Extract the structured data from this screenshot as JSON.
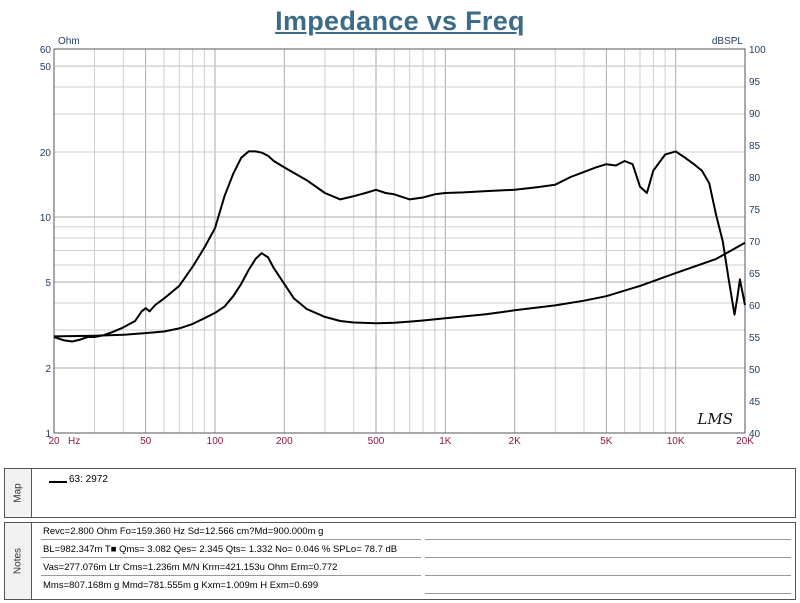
{
  "chart_data": {
    "type": "line",
    "title": "Impedance vs Freq",
    "x_scale": "log",
    "xlim": [
      20,
      20000
    ],
    "x_ticks": [
      {
        "value": 20,
        "label": "20"
      },
      {
        "value": 50,
        "label": "50"
      },
      {
        "value": 100,
        "label": "100"
      },
      {
        "value": 200,
        "label": "200"
      },
      {
        "value": 500,
        "label": "500"
      },
      {
        "value": 1000,
        "label": "1K"
      },
      {
        "value": 2000,
        "label": "2K"
      },
      {
        "value": 5000,
        "label": "5K"
      },
      {
        "value": 10000,
        "label": "10K"
      },
      {
        "value": 20000,
        "label": "20K"
      }
    ],
    "xunit": "Hz",
    "left_axis": {
      "unit": "Ohm",
      "scale": "log",
      "lim": [
        1,
        60
      ],
      "ticks": [
        {
          "value": 1,
          "label": "1"
        },
        {
          "value": 2,
          "label": "2"
        },
        {
          "value": 5,
          "label": "5"
        },
        {
          "value": 10,
          "label": "10"
        },
        {
          "value": 20,
          "label": "20"
        },
        {
          "value": 50,
          "label": "50"
        },
        {
          "value": 60,
          "label": "60"
        }
      ]
    },
    "right_axis": {
      "unit": "dBSPL",
      "scale": "linear",
      "lim": [
        40,
        100
      ],
      "ticks": [
        "40",
        "45",
        "50",
        "55",
        "60",
        "65",
        "70",
        "75",
        "80",
        "85",
        "90",
        "95",
        "100"
      ]
    },
    "grid": true,
    "watermark": "LMS",
    "series": [
      {
        "axis": "right",
        "unit": "dBSPL",
        "color": "#000000",
        "points": [
          [
            20,
            55
          ],
          [
            22,
            54.5
          ],
          [
            24,
            54.3
          ],
          [
            26,
            54.6
          ],
          [
            28,
            55
          ],
          [
            30,
            55
          ],
          [
            33,
            55.3
          ],
          [
            36,
            55.8
          ],
          [
            40,
            56.5
          ],
          [
            45,
            57.5
          ],
          [
            48,
            59
          ],
          [
            50,
            59.5
          ],
          [
            52,
            59
          ],
          [
            55,
            60
          ],
          [
            60,
            61
          ],
          [
            70,
            63
          ],
          [
            80,
            66
          ],
          [
            90,
            69
          ],
          [
            100,
            72
          ],
          [
            110,
            77
          ],
          [
            120,
            80.5
          ],
          [
            130,
            83
          ],
          [
            140,
            84
          ],
          [
            150,
            84
          ],
          [
            160,
            83.8
          ],
          [
            170,
            83.3
          ],
          [
            180,
            82.5
          ],
          [
            200,
            81.5
          ],
          [
            250,
            79.5
          ],
          [
            300,
            77.5
          ],
          [
            350,
            76.5
          ],
          [
            400,
            77
          ],
          [
            450,
            77.5
          ],
          [
            500,
            78
          ],
          [
            550,
            77.5
          ],
          [
            600,
            77.3
          ],
          [
            700,
            76.5
          ],
          [
            800,
            76.8
          ],
          [
            900,
            77.3
          ],
          [
            1000,
            77.5
          ],
          [
            1200,
            77.6
          ],
          [
            1500,
            77.8
          ],
          [
            2000,
            78
          ],
          [
            2500,
            78.4
          ],
          [
            3000,
            78.8
          ],
          [
            3500,
            80
          ],
          [
            4000,
            80.8
          ],
          [
            4500,
            81.5
          ],
          [
            5000,
            82
          ],
          [
            5500,
            81.8
          ],
          [
            6000,
            82.5
          ],
          [
            6500,
            82
          ],
          [
            7000,
            78.5
          ],
          [
            7500,
            77.5
          ],
          [
            8000,
            81
          ],
          [
            9000,
            83.5
          ],
          [
            10000,
            84
          ],
          [
            11000,
            83
          ],
          [
            12000,
            82
          ],
          [
            13000,
            81
          ],
          [
            14000,
            79
          ],
          [
            15000,
            74
          ],
          [
            16000,
            70
          ],
          [
            17000,
            64
          ],
          [
            18000,
            58.5
          ],
          [
            18500,
            61
          ],
          [
            19000,
            64
          ],
          [
            20000,
            60
          ]
        ]
      },
      {
        "axis": "left",
        "unit": "Ohm",
        "color": "#000000",
        "points": [
          [
            20,
            2.8
          ],
          [
            30,
            2.82
          ],
          [
            40,
            2.85
          ],
          [
            50,
            2.9
          ],
          [
            60,
            2.95
          ],
          [
            70,
            3.05
          ],
          [
            80,
            3.2
          ],
          [
            90,
            3.4
          ],
          [
            100,
            3.6
          ],
          [
            110,
            3.85
          ],
          [
            120,
            4.3
          ],
          [
            130,
            4.9
          ],
          [
            140,
            5.7
          ],
          [
            150,
            6.4
          ],
          [
            159.36,
            6.8
          ],
          [
            170,
            6.5
          ],
          [
            180,
            5.8
          ],
          [
            200,
            4.9
          ],
          [
            220,
            4.2
          ],
          [
            250,
            3.75
          ],
          [
            300,
            3.45
          ],
          [
            350,
            3.3
          ],
          [
            400,
            3.25
          ],
          [
            500,
            3.22
          ],
          [
            600,
            3.24
          ],
          [
            700,
            3.28
          ],
          [
            800,
            3.32
          ],
          [
            1000,
            3.4
          ],
          [
            1500,
            3.55
          ],
          [
            2000,
            3.7
          ],
          [
            3000,
            3.9
          ],
          [
            4000,
            4.1
          ],
          [
            5000,
            4.3
          ],
          [
            7000,
            4.8
          ],
          [
            10000,
            5.5
          ],
          [
            15000,
            6.4
          ],
          [
            20000,
            7.6
          ]
        ]
      }
    ]
  },
  "map": {
    "tab_label": "Map",
    "legend": [
      {
        "label": "63: 2972",
        "color": "#000000"
      }
    ]
  },
  "notes": {
    "tab_label": "Notes",
    "lines": [
      "Revc=2.800 Ohm  Fo=159.360 Hz  Sd=12.566 cm?Md=900.000m g",
      "BL=982.347m T■ Qms= 3.082  Qes= 2.345  Qts= 1.332  No= 0.046 %  SPLo= 78.7 dB",
      "Vas=277.076m Ltr  Cms=1.236m M/N  Krm=421.153u Ohm  Erm=0.772",
      "Mms=807.168m g  Mmd=781.555m g  Kxm=1.009m H  Exm=0.699"
    ]
  }
}
